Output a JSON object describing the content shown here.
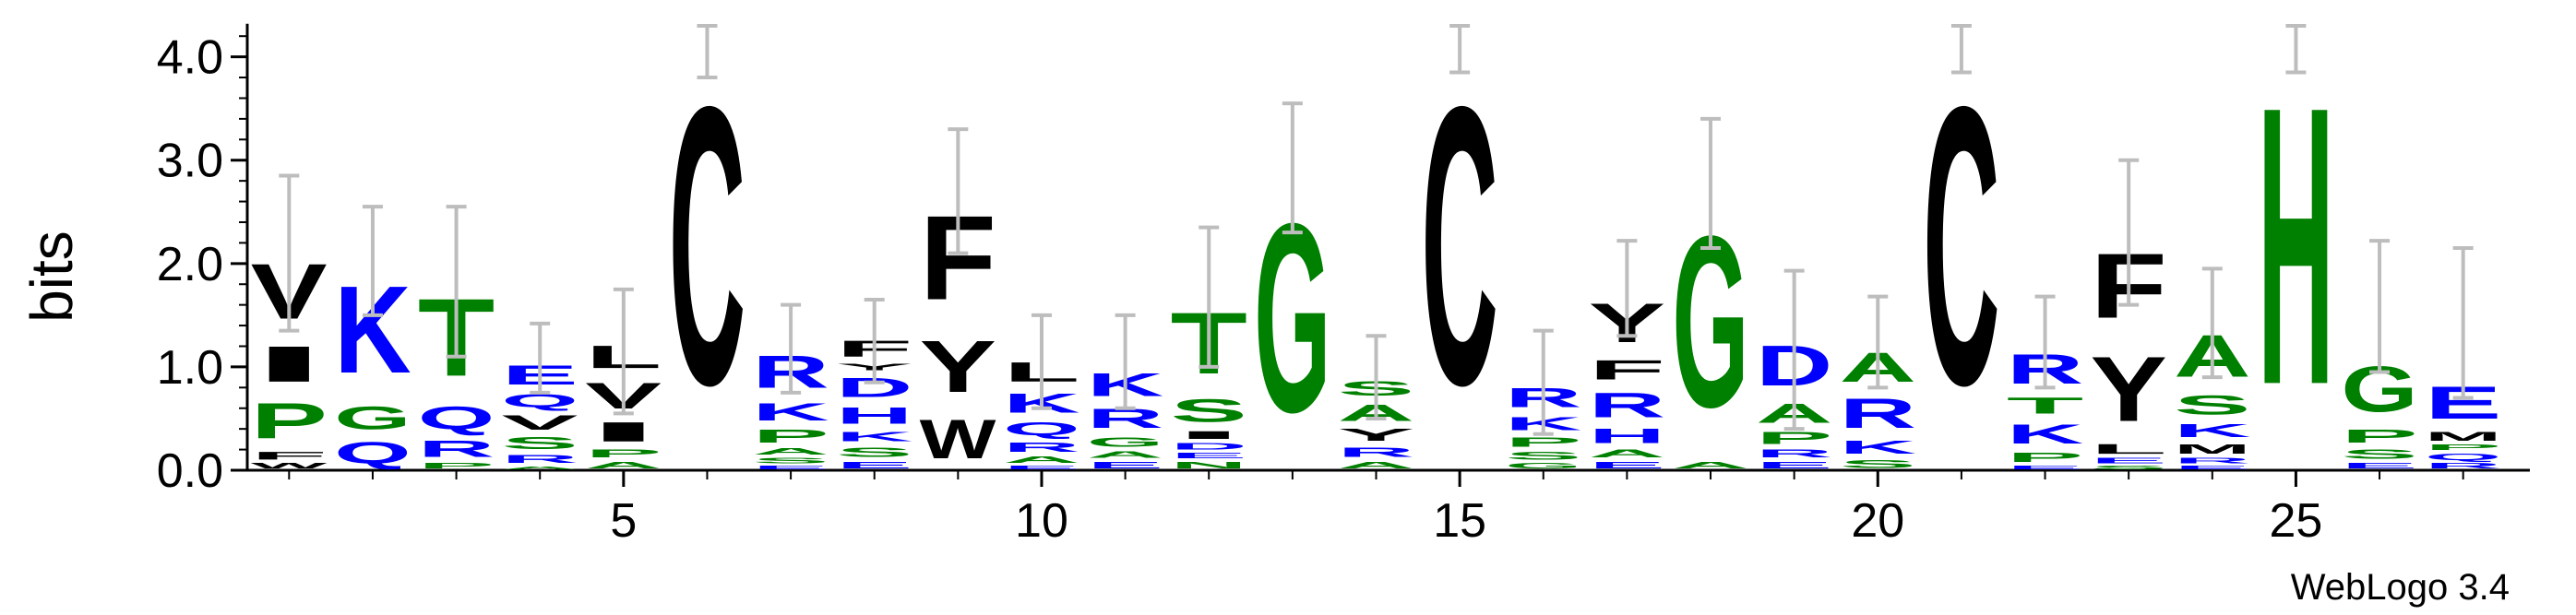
{
  "chart_data": {
    "type": "sequence-logo",
    "ylabel": "bits",
    "ylim": [
      0,
      4.32
    ],
    "yticks": [
      "0.0",
      "1.0",
      "2.0",
      "3.0",
      "4.0"
    ],
    "xticks": [
      "5",
      "10",
      "15",
      "20",
      "25"
    ],
    "credit": "WebLogo 3.4",
    "colors": {
      "hydrophobic": "#000000",
      "polar": "#008000",
      "basic": "#0000ff",
      "axis": "#000000",
      "errorbar": "#bdbdbd"
    },
    "positions": [
      {
        "pos": 1,
        "err": [
          1.35,
          2.85
        ],
        "stack": [
          [
            "W",
            0.08,
            "#000000"
          ],
          [
            "F",
            0.12,
            "#000000"
          ],
          [
            "P",
            0.55,
            "#008000"
          ],
          [
            "I",
            0.55,
            "#000000"
          ],
          [
            "V",
            0.85,
            "#000000"
          ]
        ]
      },
      {
        "pos": 2,
        "err": [
          1.5,
          2.55
        ],
        "stack": [
          [
            "Q",
            0.33,
            "#0000ff"
          ],
          [
            "G",
            0.35,
            "#008000"
          ],
          [
            "K",
            1.35,
            "#0000ff"
          ]
        ]
      },
      {
        "pos": 3,
        "err": [
          1.1,
          2.55
        ],
        "stack": [
          [
            "P",
            0.08,
            "#008000"
          ],
          [
            "R",
            0.25,
            "#0000ff"
          ],
          [
            "Q",
            0.35,
            "#0000ff"
          ],
          [
            "T",
            1.2,
            "#008000"
          ]
        ]
      },
      {
        "pos": 4,
        "err": [
          0.75,
          1.42
        ],
        "stack": [
          [
            "A",
            0.05,
            "#008000"
          ],
          [
            "R",
            0.12,
            "#0000ff"
          ],
          [
            "S",
            0.18,
            "#008000"
          ],
          [
            "V",
            0.22,
            "#000000"
          ],
          [
            "Q",
            0.2,
            "#0000ff"
          ],
          [
            "E",
            0.3,
            "#0000ff"
          ]
        ]
      },
      {
        "pos": 5,
        "err": [
          0.55,
          1.75
        ],
        "stack": [
          [
            "A",
            0.1,
            "#008000"
          ],
          [
            "P",
            0.12,
            "#008000"
          ],
          [
            "I",
            0.3,
            "#000000"
          ],
          [
            "V",
            0.4,
            "#000000"
          ],
          [
            "L",
            0.35,
            "#000000"
          ]
        ]
      },
      {
        "pos": 6,
        "err": [
          3.8,
          4.3
        ],
        "stack": [
          [
            "C",
            4.3,
            "#000000"
          ]
        ]
      },
      {
        "pos": 7,
        "err": [
          0.75,
          1.6
        ],
        "stack": [
          [
            "E",
            0.05,
            "#0000ff"
          ],
          [
            "S",
            0.08,
            "#008000"
          ],
          [
            "A",
            0.1,
            "#008000"
          ],
          [
            "P",
            0.2,
            "#008000"
          ],
          [
            "K",
            0.27,
            "#0000ff"
          ],
          [
            "R",
            0.5,
            "#0000ff"
          ]
        ]
      },
      {
        "pos": 8,
        "err": [
          0.85,
          1.65
        ],
        "stack": [
          [
            "E",
            0.1,
            "#0000ff"
          ],
          [
            "S",
            0.15,
            "#008000"
          ],
          [
            "K",
            0.15,
            "#0000ff"
          ],
          [
            "H",
            0.25,
            "#0000ff"
          ],
          [
            "D",
            0.3,
            "#0000ff"
          ],
          [
            "Y",
            0.1,
            "#000000"
          ],
          [
            "F",
            0.25,
            "#000000"
          ]
        ]
      },
      {
        "pos": 9,
        "err": [
          2.1,
          3.3
        ],
        "stack": [
          [
            "W",
            0.6,
            "#000000"
          ],
          [
            "Y",
            0.8,
            "#000000"
          ],
          [
            "F",
            1.3,
            "#000000"
          ]
        ]
      },
      {
        "pos": 10,
        "err": [
          0.6,
          1.5
        ],
        "stack": [
          [
            "E",
            0.05,
            "#0000ff"
          ],
          [
            "A",
            0.1,
            "#008000"
          ],
          [
            "R",
            0.15,
            "#0000ff"
          ],
          [
            "Q",
            0.2,
            "#0000ff"
          ],
          [
            "K",
            0.3,
            "#0000ff"
          ],
          [
            "L",
            0.3,
            "#000000"
          ]
        ]
      },
      {
        "pos": 11,
        "err": [
          0.6,
          1.5
        ],
        "stack": [
          [
            "E",
            0.1,
            "#0000ff"
          ],
          [
            "A",
            0.1,
            "#008000"
          ],
          [
            "G",
            0.15,
            "#008000"
          ],
          [
            "R",
            0.3,
            "#0000ff"
          ],
          [
            "K",
            0.35,
            "#0000ff"
          ]
        ]
      },
      {
        "pos": 12,
        "err": [
          1.0,
          2.35
        ],
        "stack": [
          [
            "N",
            0.1,
            "#008000"
          ],
          [
            "E",
            0.08,
            "#0000ff"
          ],
          [
            "D",
            0.1,
            "#0000ff"
          ],
          [
            "I",
            0.12,
            "#000000"
          ],
          [
            "S",
            0.35,
            "#008000"
          ],
          [
            "T",
            0.95,
            "#008000"
          ]
        ]
      },
      {
        "pos": 13,
        "err": [
          2.3,
          3.55
        ],
        "stack": [
          [
            "G",
            2.92,
            "#008000"
          ]
        ]
      },
      {
        "pos": 14,
        "err": [
          0.5,
          1.3
        ],
        "stack": [
          [
            "A",
            0.1,
            "#008000"
          ],
          [
            "R",
            0.15,
            "#0000ff"
          ],
          [
            "Y",
            0.18,
            "#000000"
          ],
          [
            "A",
            0.25,
            "#008000"
          ],
          [
            "S",
            0.22,
            "#008000"
          ]
        ]
      },
      {
        "pos": 15,
        "err": [
          3.85,
          4.3
        ],
        "stack": [
          [
            "C",
            4.3,
            "#000000"
          ]
        ]
      },
      {
        "pos": 16,
        "err": [
          0.35,
          1.35
        ],
        "stack": [
          [
            "G",
            0.08,
            "#008000"
          ],
          [
            "S",
            0.12,
            "#008000"
          ],
          [
            "P",
            0.15,
            "#008000"
          ],
          [
            "K",
            0.2,
            "#0000ff"
          ],
          [
            "R",
            0.3,
            "#0000ff"
          ]
        ]
      },
      {
        "pos": 17,
        "err": [
          1.3,
          2.22
        ],
        "stack": [
          [
            "E",
            0.1,
            "#0000ff"
          ],
          [
            "A",
            0.12,
            "#008000"
          ],
          [
            "H",
            0.22,
            "#0000ff"
          ],
          [
            "R",
            0.38,
            "#0000ff"
          ],
          [
            "F",
            0.3,
            "#000000"
          ],
          [
            "Y",
            0.6,
            "#000000"
          ]
        ]
      },
      {
        "pos": 18,
        "err": [
          2.15,
          3.4
        ],
        "stack": [
          [
            "A",
            0.1,
            "#008000"
          ],
          [
            "G",
            2.65,
            "#008000"
          ]
        ]
      },
      {
        "pos": 19,
        "err": [
          0.4,
          1.93
        ],
        "stack": [
          [
            "E",
            0.1,
            "#0000ff"
          ],
          [
            "R",
            0.12,
            "#0000ff"
          ],
          [
            "P",
            0.18,
            "#008000"
          ],
          [
            "A",
            0.3,
            "#008000"
          ],
          [
            "D",
            0.62,
            "#0000ff"
          ]
        ]
      },
      {
        "pos": 20,
        "err": [
          0.8,
          1.68
        ],
        "stack": [
          [
            "S",
            0.12,
            "#008000"
          ],
          [
            "K",
            0.2,
            "#0000ff"
          ],
          [
            "R",
            0.45,
            "#0000ff"
          ],
          [
            "A",
            0.45,
            "#008000"
          ]
        ]
      },
      {
        "pos": 21,
        "err": [
          3.85,
          4.3
        ],
        "stack": [
          [
            "C",
            4.3,
            "#000000"
          ]
        ]
      },
      {
        "pos": 22,
        "err": [
          0.8,
          1.68
        ],
        "stack": [
          [
            "E",
            0.05,
            "#0000ff"
          ],
          [
            "P",
            0.15,
            "#008000"
          ],
          [
            "K",
            0.3,
            "#0000ff"
          ],
          [
            "T",
            0.25,
            "#008000"
          ],
          [
            "R",
            0.45,
            "#0000ff"
          ]
        ]
      },
      {
        "pos": 23,
        "err": [
          1.6,
          3.0
        ],
        "stack": [
          [
            "S",
            0.05,
            "#008000"
          ],
          [
            "E",
            0.08,
            "#0000ff"
          ],
          [
            "L",
            0.15,
            "#000000"
          ],
          [
            "Y",
            1.0,
            "#000000"
          ],
          [
            "F",
            1.0,
            "#000000"
          ]
        ]
      },
      {
        "pos": 24,
        "err": [
          0.9,
          1.95
        ],
        "stack": [
          [
            "E",
            0.05,
            "#0000ff"
          ],
          [
            "R",
            0.08,
            "#0000ff"
          ],
          [
            "M",
            0.15,
            "#000000"
          ],
          [
            "K",
            0.2,
            "#0000ff"
          ],
          [
            "S",
            0.3,
            "#008000"
          ],
          [
            "A",
            0.65,
            "#008000"
          ]
        ]
      },
      {
        "pos": 25,
        "err": [
          3.85,
          4.3
        ],
        "stack": [
          [
            "H",
            4.3,
            "#008000"
          ]
        ]
      },
      {
        "pos": 26,
        "err": [
          0.95,
          2.22
        ],
        "stack": [
          [
            "E",
            0.08,
            "#0000ff"
          ],
          [
            "S",
            0.15,
            "#008000"
          ],
          [
            "P",
            0.2,
            "#008000"
          ],
          [
            "G",
            0.7,
            "#008000"
          ]
        ]
      },
      {
        "pos": 27,
        "err": [
          0.7,
          2.15
        ],
        "stack": [
          [
            "R",
            0.08,
            "#0000ff"
          ],
          [
            "Q",
            0.1,
            "#0000ff"
          ],
          [
            "P",
            0.08,
            "#008000"
          ],
          [
            "M",
            0.14,
            "#000000"
          ],
          [
            "E",
            0.5,
            "#0000ff"
          ]
        ]
      }
    ]
  }
}
